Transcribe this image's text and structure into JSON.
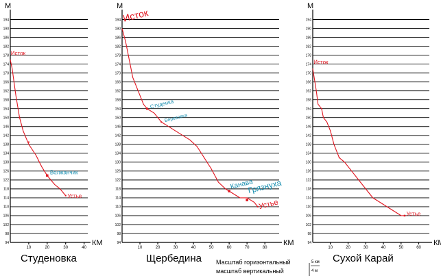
{
  "y_unit": "М",
  "x_unit": "КМ",
  "y_ticks": [
    94,
    98,
    102,
    106,
    110,
    114,
    118,
    122,
    126,
    130,
    134,
    138,
    142,
    146,
    150,
    154,
    158,
    162,
    166,
    170,
    174,
    178,
    182,
    186,
    190,
    194
  ],
  "y_tick_labels": [
    "94",
    "98",
    "102",
    "106",
    "110",
    "114",
    "118",
    "122",
    "126",
    "130",
    "134",
    "138",
    "142",
    "146",
    "150",
    "154",
    "158",
    "162",
    "166",
    "170",
    "174",
    "178",
    "182",
    "186",
    "190",
    "194"
  ],
  "colors": {
    "river": "#e0141e",
    "label_red": "#e0141e",
    "label_blue": "#1a8fb0",
    "grid": "#000000"
  },
  "scale_note": {
    "horizontal": "Масштаб горизонтальный",
    "vertical": "масштаб вертикальный",
    "horizontal_value": "5 км",
    "vertical_value": "4 м"
  },
  "chart_data": [
    {
      "type": "line",
      "title": "Студеновка",
      "ylim": [
        94,
        196
      ],
      "xlim": [
        0,
        42
      ],
      "x_ticks": [
        10,
        20,
        30,
        40
      ],
      "x_tick_labels": [
        "10",
        "20",
        "30",
        "40"
      ],
      "x": [
        0,
        1,
        2,
        3,
        5,
        7,
        10,
        14,
        17,
        20,
        24,
        27,
        30
      ],
      "y": [
        176,
        172,
        166,
        160,
        150,
        144,
        138,
        133,
        128,
        124,
        120,
        118,
        115
      ],
      "markers": [
        {
          "x": 20,
          "y": 124,
          "size": 3.5
        },
        {
          "x": 5,
          "y": 150,
          "size": 2
        },
        {
          "x": 10,
          "y": 139,
          "size": 2
        },
        {
          "x": 30,
          "y": 115,
          "size": 2
        }
      ],
      "annotations": [
        {
          "text": "Исток",
          "x": 0.3,
          "y": 178,
          "color": "red",
          "size": 8,
          "rotate": 0
        },
        {
          "text": "Волжанчик",
          "x": 21.5,
          "y": 124.5,
          "color": "blue",
          "size": 8,
          "rotate": 0
        },
        {
          "text": "Устье",
          "x": 31,
          "y": 114,
          "color": "red",
          "size": 8,
          "rotate": 0
        }
      ]
    },
    {
      "type": "line",
      "title": "Щербедина",
      "ylim": [
        94,
        196
      ],
      "xlim": [
        0,
        88
      ],
      "x_ticks": [
        10,
        20,
        30,
        40,
        50,
        60,
        70,
        80
      ],
      "x_tick_labels": [
        "10",
        "20",
        "30",
        "40",
        "50",
        "60",
        "70",
        "80"
      ],
      "x": [
        0,
        2,
        4,
        6,
        8,
        10,
        12,
        14,
        18,
        22,
        26,
        30,
        34,
        38,
        42,
        46,
        50,
        54,
        58,
        62,
        66,
        70,
        74,
        76
      ],
      "y": [
        190,
        184,
        176,
        168,
        164,
        160,
        156,
        154,
        152,
        148,
        146,
        144,
        142,
        140,
        137,
        132,
        127,
        121,
        118,
        116,
        114,
        114,
        112,
        110
      ],
      "markers": [
        {
          "x": 14,
          "y": 154,
          "size": 3
        },
        {
          "x": 60,
          "y": 117,
          "size": 3.5
        },
        {
          "x": 70,
          "y": 113,
          "size": 3.5
        },
        {
          "x": 22,
          "y": 148,
          "size": 2
        },
        {
          "x": 76,
          "y": 110,
          "size": 2
        }
      ],
      "annotations": [
        {
          "text": "Исток",
          "x": 1,
          "y": 193,
          "color": "red",
          "size": 14,
          "rotate": -14
        },
        {
          "text": "Студенка",
          "x": 16,
          "y": 154,
          "color": "blue",
          "size": 8,
          "rotate": -14
        },
        {
          "text": "Березовка",
          "x": 24,
          "y": 148,
          "color": "blue",
          "size": 7,
          "rotate": -14
        },
        {
          "text": "Канава",
          "x": 61,
          "y": 118,
          "color": "blue",
          "size": 10,
          "rotate": -14
        },
        {
          "text": "Грязнуха",
          "x": 71,
          "y": 116,
          "color": "blue",
          "size": 12,
          "rotate": -14
        },
        {
          "text": "Устье",
          "x": 77,
          "y": 109,
          "color": "red",
          "size": 11,
          "rotate": -14
        }
      ]
    },
    {
      "type": "line",
      "title": "Сухой Карай",
      "ylim": [
        94,
        196
      ],
      "xlim": [
        0,
        66
      ],
      "x_ticks": [
        10,
        20,
        30,
        40,
        50,
        60
      ],
      "x_tick_labels": [
        "10",
        "20",
        "30",
        "40",
        "50",
        "60"
      ],
      "x": [
        0,
        2,
        3,
        5,
        6,
        8,
        10,
        12,
        15,
        18,
        22,
        26,
        30,
        34,
        38,
        42,
        46,
        50,
        52
      ],
      "y": [
        172,
        162,
        156,
        154,
        150,
        148,
        144,
        138,
        132,
        130,
        126,
        122,
        118,
        114,
        112,
        110,
        108,
        106,
        106
      ],
      "markers": [
        {
          "x": 52,
          "y": 106,
          "size": 2.5
        },
        {
          "x": 5,
          "y": 154,
          "size": 1.5
        },
        {
          "x": 15,
          "y": 132,
          "size": 1.5
        }
      ],
      "annotations": [
        {
          "text": "Исток",
          "x": 0.5,
          "y": 174,
          "color": "red",
          "size": 8,
          "rotate": 0
        },
        {
          "text": "Устье",
          "x": 53,
          "y": 106,
          "color": "red",
          "size": 8,
          "rotate": 0
        }
      ]
    }
  ]
}
